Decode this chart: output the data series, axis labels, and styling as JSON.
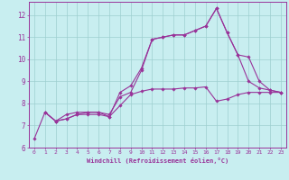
{
  "xlabel": "Windchill (Refroidissement éolien,°C)",
  "bg_color": "#c8eef0",
  "grid_color": "#9ecfcf",
  "line_color": "#993399",
  "xlim": [
    -0.5,
    23.5
  ],
  "ylim": [
    6,
    12.6
  ],
  "yticks": [
    6,
    7,
    8,
    9,
    10,
    11,
    12
  ],
  "xticks": [
    0,
    1,
    2,
    3,
    4,
    5,
    6,
    7,
    8,
    9,
    10,
    11,
    12,
    13,
    14,
    15,
    16,
    17,
    18,
    19,
    20,
    21,
    22,
    23
  ],
  "series1_x": [
    0,
    1,
    2,
    3,
    4,
    5,
    6,
    7,
    8,
    9,
    10,
    11,
    12,
    13,
    14,
    15,
    16,
    17,
    18,
    19,
    20,
    21,
    22,
    23
  ],
  "series1_y": [
    6.4,
    7.6,
    7.2,
    7.3,
    7.5,
    7.6,
    7.6,
    7.4,
    8.5,
    8.8,
    9.6,
    10.9,
    11.0,
    11.1,
    11.1,
    11.3,
    11.5,
    12.3,
    11.2,
    10.2,
    9.0,
    8.7,
    8.6,
    8.5
  ],
  "series2_x": [
    1,
    2,
    3,
    4,
    5,
    6,
    7,
    8,
    9,
    10,
    11,
    12,
    13,
    14,
    15,
    16,
    17,
    18,
    19,
    20,
    21,
    22,
    23
  ],
  "series2_y": [
    7.6,
    7.2,
    7.3,
    7.5,
    7.5,
    7.5,
    7.4,
    7.9,
    8.4,
    8.55,
    8.65,
    8.65,
    8.65,
    8.7,
    8.7,
    8.75,
    8.1,
    8.2,
    8.4,
    8.5,
    8.5,
    8.5,
    8.5
  ],
  "series3_x": [
    1,
    2,
    3,
    4,
    5,
    6,
    7,
    8,
    9,
    10,
    11,
    12,
    13,
    14,
    15,
    16,
    17,
    18,
    19,
    20,
    21,
    22,
    23
  ],
  "series3_y": [
    7.6,
    7.2,
    7.5,
    7.6,
    7.6,
    7.6,
    7.5,
    8.3,
    8.5,
    9.5,
    10.9,
    11.0,
    11.1,
    11.1,
    11.3,
    11.5,
    12.3,
    11.2,
    10.2,
    10.1,
    9.0,
    8.6,
    8.5
  ]
}
